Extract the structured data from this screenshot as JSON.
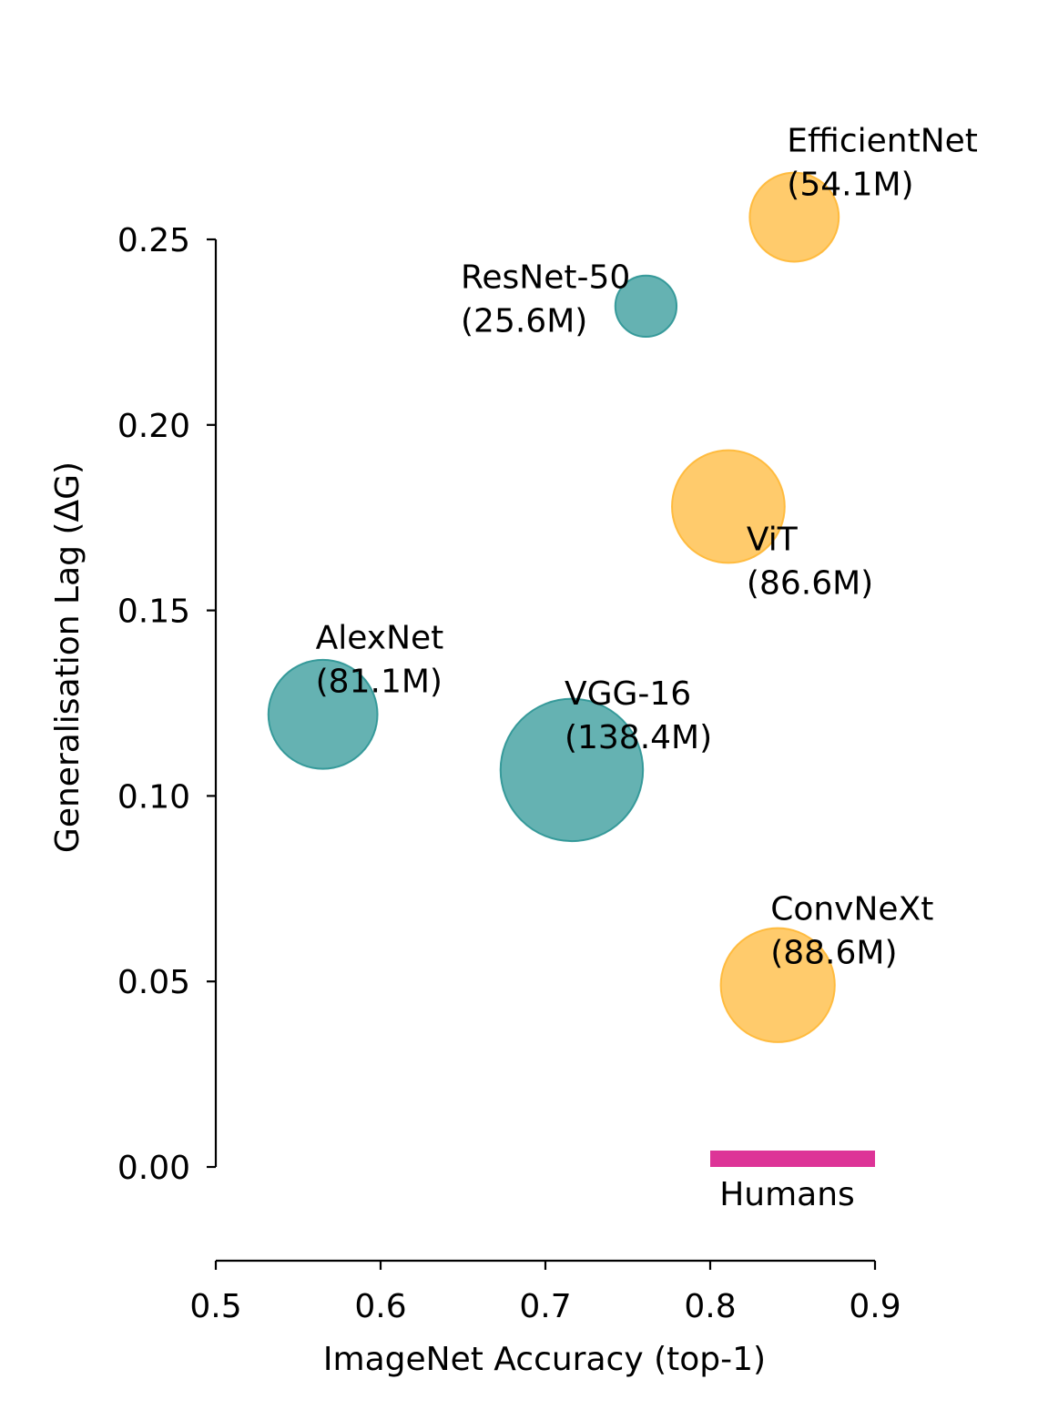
{
  "chart_data": {
    "type": "scatter",
    "xlabel": "ImageNet Accuracy (top-1)",
    "ylabel": "Generalisation Lag (ΔG)",
    "xlim": [
      0.5,
      0.9
    ],
    "ylim": [
      -0.025,
      0.265
    ],
    "x_ticks": [
      0.5,
      0.6,
      0.7,
      0.8,
      0.9
    ],
    "x_tick_labels": [
      "0.5",
      "0.6",
      "0.7",
      "0.8",
      "0.9"
    ],
    "y_ticks": [
      0.0,
      0.05,
      0.1,
      0.15,
      0.2,
      0.25
    ],
    "y_tick_labels": [
      "0.00",
      "0.05",
      "0.10",
      "0.15",
      "0.20",
      "0.25"
    ],
    "grid": false,
    "colors": {
      "teal": "#2A9494",
      "orange": "#FFB733",
      "pink": "#DD3497"
    },
    "points": [
      {
        "name": "AlexNet",
        "params": "(81.1M)",
        "x": 0.565,
        "y": 0.122,
        "size_m": 81.1,
        "color": "teal",
        "label_pos": "upper-right"
      },
      {
        "name": "VGG-16",
        "params": "(138.4M)",
        "x": 0.716,
        "y": 0.107,
        "size_m": 138.4,
        "color": "teal",
        "label_pos": "upper-right"
      },
      {
        "name": "ResNet-50",
        "params": "(25.6M)",
        "x": 0.761,
        "y": 0.232,
        "size_m": 25.6,
        "color": "teal",
        "label_pos": "left"
      },
      {
        "name": "EfficientNet",
        "params": "(54.1M)",
        "x": 0.851,
        "y": 0.256,
        "size_m": 54.1,
        "color": "orange",
        "label_pos": "upper-right"
      },
      {
        "name": "ViT",
        "params": "(86.6M)",
        "x": 0.811,
        "y": 0.178,
        "size_m": 86.6,
        "color": "orange",
        "label_pos": "lower-right"
      },
      {
        "name": "ConvNeXt",
        "params": "(88.6M)",
        "x": 0.841,
        "y": 0.049,
        "size_m": 88.6,
        "color": "orange",
        "label_pos": "upper-right"
      }
    ],
    "reference_band": {
      "label": "Humans",
      "x_start": 0.8,
      "x_end": 0.9,
      "y": 0.0,
      "color": "pink"
    }
  }
}
